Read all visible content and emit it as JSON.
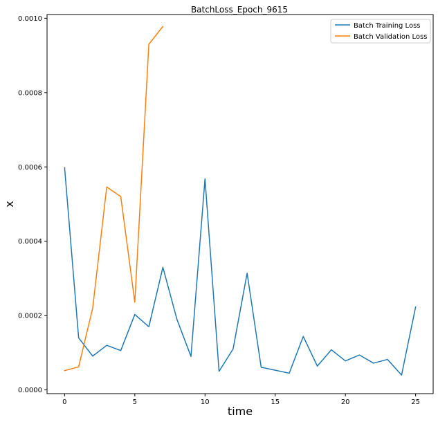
{
  "chart_data": {
    "type": "line",
    "title": "BatchLoss_Epoch_9615",
    "xlabel": "time",
    "ylabel": "x",
    "xlim": [
      -1.25,
      26.25
    ],
    "ylim": [
      -1e-05,
      0.00101
    ],
    "xticks": [
      0,
      5,
      10,
      15,
      20,
      25
    ],
    "yticks": [
      0.0,
      0.0002,
      0.0004,
      0.0006,
      0.0008,
      0.001
    ],
    "ytick_labels": [
      "0.0000",
      "0.0002",
      "0.0004",
      "0.0006",
      "0.0008",
      "0.0010"
    ],
    "grid": false,
    "legend_position": "upper right",
    "series": [
      {
        "name": "Batch Training Loss",
        "color": "#1f77b4",
        "x": [
          0,
          1,
          2,
          3,
          4,
          5,
          6,
          7,
          8,
          9,
          10,
          11,
          12,
          13,
          14,
          15,
          16,
          17,
          18,
          19,
          20,
          21,
          22,
          23,
          24,
          25
        ],
        "values": [
          0.000598,
          0.00014,
          9.1e-05,
          0.00012,
          0.000106,
          0.000203,
          0.00017,
          0.00033,
          0.00019,
          9e-05,
          0.000568,
          5e-05,
          0.00011,
          0.000314,
          6.1e-05,
          5.3e-05,
          4.5e-05,
          0.000144,
          6.4e-05,
          0.000108,
          7.8e-05,
          9.4e-05,
          7.2e-05,
          8.2e-05,
          4e-05,
          0.000223
        ]
      },
      {
        "name": "Batch Validation Loss",
        "color": "#ff7f0e",
        "x": [
          0,
          1,
          2,
          3,
          4,
          5,
          6,
          7
        ],
        "values": [
          5.2e-05,
          6.2e-05,
          0.00022,
          0.000546,
          0.00052,
          0.000236,
          0.00093,
          0.000978
        ]
      }
    ]
  }
}
